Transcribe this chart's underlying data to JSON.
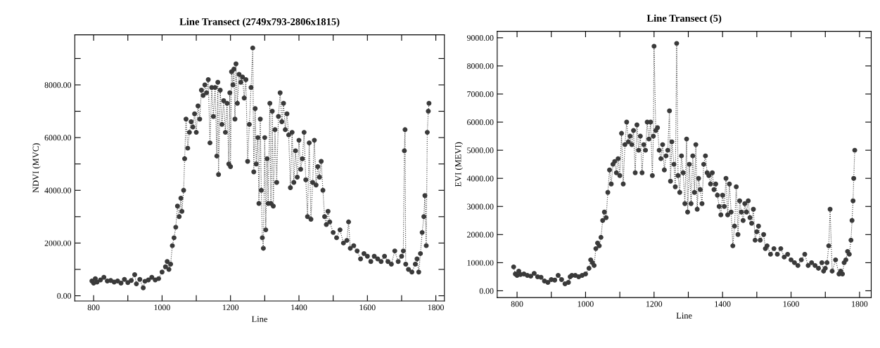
{
  "chart_data": [
    {
      "type": "line",
      "title": "Line Transect (2749x793-2806x1815)",
      "xlabel": "Line",
      "ylabel": "NDVI (MVC)",
      "marker": "circle",
      "line_style": "dotted",
      "grid": false,
      "xlim": [
        745,
        1825
      ],
      "ylim": [
        -200,
        9900
      ],
      "xticks": [
        800,
        {
          "value": 900,
          "label": null
        },
        1000,
        {
          "value": 1100,
          "label": null
        },
        1200,
        {
          "value": 1300,
          "label": null
        },
        1400,
        {
          "value": 1500,
          "label": null
        },
        1600,
        {
          "value": 1700,
          "label": null
        },
        1800
      ],
      "yticks": [
        {
          "value": 0,
          "label": "0.00"
        },
        {
          "value": 1000,
          "label": null
        },
        {
          "value": 2000,
          "label": "2000.00"
        },
        {
          "value": 3000,
          "label": null
        },
        {
          "value": 4000,
          "label": "4000.00"
        },
        {
          "value": 5000,
          "label": null
        },
        {
          "value": 6000,
          "label": "6000.00"
        },
        {
          "value": 7000,
          "label": null
        },
        {
          "value": 8000,
          "label": "8000.00"
        },
        {
          "value": 9000,
          "label": null
        }
      ],
      "series": [
        {
          "color": "#3a3a3a",
          "x": [
            795,
            800,
            805,
            810,
            820,
            830,
            840,
            850,
            860,
            870,
            880,
            890,
            900,
            910,
            920,
            925,
            935,
            945,
            950,
            960,
            970,
            980,
            990,
            1000,
            1010,
            1015,
            1020,
            1025,
            1030,
            1035,
            1040,
            1045,
            1050,
            1055,
            1058,
            1063,
            1066,
            1070,
            1075,
            1080,
            1085,
            1090,
            1095,
            1100,
            1105,
            1110,
            1115,
            1120,
            1125,
            1130,
            1135,
            1140,
            1145,
            1150,
            1155,
            1160,
            1163,
            1165,
            1170,
            1175,
            1180,
            1185,
            1190,
            1195,
            1198,
            1200,
            1203,
            1207,
            1210,
            1213,
            1216,
            1220,
            1225,
            1230,
            1235,
            1240,
            1245,
            1250,
            1255,
            1260,
            1265,
            1268,
            1272,
            1275,
            1280,
            1283,
            1287,
            1290,
            1293,
            1296,
            1300,
            1303,
            1307,
            1310,
            1315,
            1318,
            1322,
            1325,
            1330,
            1335,
            1340,
            1345,
            1350,
            1355,
            1360,
            1365,
            1370,
            1375,
            1380,
            1385,
            1390,
            1395,
            1400,
            1405,
            1410,
            1415,
            1420,
            1425,
            1430,
            1435,
            1440,
            1445,
            1450,
            1455,
            1460,
            1465,
            1470,
            1475,
            1480,
            1485,
            1490,
            1500,
            1510,
            1520,
            1530,
            1540,
            1545,
            1550,
            1560,
            1570,
            1580,
            1590,
            1600,
            1610,
            1620,
            1630,
            1640,
            1650,
            1660,
            1670,
            1680,
            1690,
            1700,
            1705,
            1708,
            1710,
            1712,
            1720,
            1730,
            1740,
            1745,
            1750,
            1755,
            1760,
            1765,
            1768,
            1772,
            1775,
            1778,
            1780
          ],
          "values": [
            560,
            480,
            650,
            520,
            600,
            700,
            560,
            580,
            520,
            560,
            480,
            620,
            500,
            580,
            800,
            450,
            620,
            300,
            550,
            600,
            700,
            600,
            650,
            900,
            1100,
            1300,
            1000,
            1200,
            1900,
            2200,
            2600,
            3400,
            3000,
            3700,
            3200,
            4000,
            5200,
            6700,
            5600,
            6200,
            6600,
            6400,
            6900,
            6200,
            7200,
            6700,
            7800,
            7600,
            8000,
            7700,
            8200,
            5800,
            7900,
            6800,
            7900,
            5300,
            8100,
            4600,
            7800,
            6500,
            7400,
            6200,
            7300,
            5000,
            7700,
            4900,
            8500,
            8000,
            8600,
            6700,
            8800,
            7300,
            8400,
            8100,
            8300,
            7500,
            8200,
            5100,
            6500,
            7900,
            9400,
            4700,
            7100,
            5000,
            6000,
            3500,
            6700,
            4000,
            2200,
            1800,
            6000,
            2500,
            5200,
            3500,
            7300,
            3500,
            7000,
            3400,
            6300,
            4300,
            6800,
            7700,
            6600,
            7300,
            6300,
            6900,
            6100,
            4100,
            6200,
            4300,
            5500,
            4500,
            5900,
            4800,
            5200,
            6200,
            4400,
            3000,
            5800,
            2900,
            4300,
            5900,
            4200,
            4900,
            4500,
            5100,
            4000,
            3000,
            2700,
            3200,
            2800,
            2400,
            2200,
            2500,
            2000,
            2100,
            2800,
            1800,
            1900,
            1700,
            1400,
            1600,
            1500,
            1300,
            1500,
            1400,
            1300,
            1500,
            1300,
            1200,
            1700,
            1300,
            1500,
            1700,
            5500,
            6300,
            1200,
            1000,
            900,
            1200,
            1400,
            900,
            1600,
            2400,
            3000,
            3800,
            1900,
            6200,
            7000,
            7300
          ]
        }
      ]
    },
    {
      "type": "line",
      "title": "Line Transect (5)",
      "xlabel": "Line",
      "ylabel": "EVI (MEVI)",
      "marker": "circle",
      "line_style": "dotted",
      "grid": false,
      "xlim": [
        742,
        1834
      ],
      "ylim": [
        -240,
        9230
      ],
      "xticks": [
        800,
        {
          "value": 900,
          "label": null
        },
        1000,
        {
          "value": 1100,
          "label": null
        },
        1200,
        {
          "value": 1300,
          "label": null
        },
        1400,
        {
          "value": 1500,
          "label": null
        },
        1600,
        {
          "value": 1700,
          "label": null
        },
        1800
      ],
      "yticks": [
        {
          "value": 0,
          "label": "0.00"
        },
        {
          "value": 1000,
          "label": "1000.00"
        },
        {
          "value": 2000,
          "label": "2000.00"
        },
        {
          "value": 3000,
          "label": "3000.00"
        },
        {
          "value": 4000,
          "label": "4000.00"
        },
        {
          "value": 5000,
          "label": "5000.00"
        },
        {
          "value": 6000,
          "label": "6000.00"
        },
        {
          "value": 7000,
          "label": "7000.00"
        },
        {
          "value": 8000,
          "label": "8000.00"
        },
        {
          "value": 9000,
          "label": "9000.00"
        }
      ],
      "series": [
        {
          "color": "#3a3a3a",
          "x": [
            790,
            795,
            800,
            805,
            810,
            820,
            830,
            840,
            850,
            860,
            870,
            880,
            890,
            900,
            910,
            920,
            930,
            940,
            950,
            955,
            960,
            970,
            980,
            990,
            1000,
            1010,
            1015,
            1020,
            1025,
            1030,
            1035,
            1040,
            1045,
            1050,
            1055,
            1060,
            1065,
            1070,
            1075,
            1080,
            1085,
            1090,
            1095,
            1100,
            1105,
            1110,
            1115,
            1120,
            1125,
            1130,
            1135,
            1140,
            1145,
            1150,
            1155,
            1160,
            1165,
            1170,
            1175,
            1180,
            1185,
            1190,
            1195,
            1198,
            1200,
            1205,
            1210,
            1215,
            1220,
            1225,
            1230,
            1235,
            1240,
            1245,
            1248,
            1252,
            1258,
            1262,
            1266,
            1270,
            1275,
            1280,
            1285,
            1290,
            1295,
            1298,
            1303,
            1308,
            1313,
            1318,
            1322,
            1326,
            1330,
            1335,
            1340,
            1345,
            1350,
            1355,
            1360,
            1365,
            1370,
            1375,
            1380,
            1385,
            1390,
            1395,
            1400,
            1405,
            1410,
            1415,
            1420,
            1425,
            1430,
            1435,
            1440,
            1445,
            1450,
            1455,
            1460,
            1465,
            1470,
            1475,
            1480,
            1485,
            1490,
            1495,
            1500,
            1505,
            1510,
            1520,
            1525,
            1530,
            1540,
            1550,
            1560,
            1570,
            1580,
            1590,
            1600,
            1610,
            1620,
            1630,
            1640,
            1650,
            1660,
            1670,
            1680,
            1690,
            1695,
            1700,
            1705,
            1710,
            1714,
            1720,
            1730,
            1740,
            1745,
            1750,
            1755,
            1760,
            1765,
            1770,
            1775,
            1778,
            1781,
            1783,
            1786
          ],
          "values": [
            850,
            600,
            550,
            700,
            580,
            600,
            550,
            520,
            620,
            500,
            480,
            350,
            300,
            400,
            380,
            550,
            400,
            250,
            300,
            500,
            550,
            550,
            500,
            550,
            600,
            800,
            1100,
            1000,
            900,
            1500,
            1700,
            1600,
            1900,
            2500,
            2800,
            2600,
            3500,
            4300,
            3800,
            4500,
            4600,
            4200,
            4700,
            4100,
            5600,
            3800,
            5200,
            6000,
            5300,
            5500,
            5200,
            5700,
            4200,
            5900,
            5000,
            5500,
            4200,
            5200,
            5000,
            6000,
            5400,
            6000,
            4100,
            5500,
            8700,
            5700,
            5800,
            5000,
            4700,
            5200,
            4300,
            4800,
            5000,
            6400,
            3900,
            5300,
            4500,
            3700,
            8800,
            4100,
            3500,
            4800,
            4200,
            3100,
            5400,
            2800,
            4500,
            3100,
            4800,
            3500,
            5200,
            2900,
            4000,
            3600,
            3100,
            4500,
            4800,
            4200,
            4100,
            3800,
            4200,
            3600,
            3800,
            3400,
            3000,
            2700,
            3400,
            3000,
            4000,
            2700,
            3800,
            2800,
            1600,
            2300,
            3700,
            2000,
            3200,
            2800,
            2500,
            3100,
            2800,
            3200,
            2600,
            2400,
            2900,
            1800,
            2100,
            2300,
            1800,
            2000,
            1500,
            1600,
            1300,
            1500,
            1300,
            1500,
            1200,
            1300,
            1100,
            1000,
            900,
            1100,
            1300,
            900,
            1000,
            900,
            800,
            1000,
            700,
            800,
            1000,
            1600,
            2900,
            700,
            1100,
            600,
            700,
            600,
            1000,
            1100,
            1400,
            1300,
            1800,
            2500,
            3200,
            4000,
            5000
          ]
        }
      ]
    }
  ]
}
